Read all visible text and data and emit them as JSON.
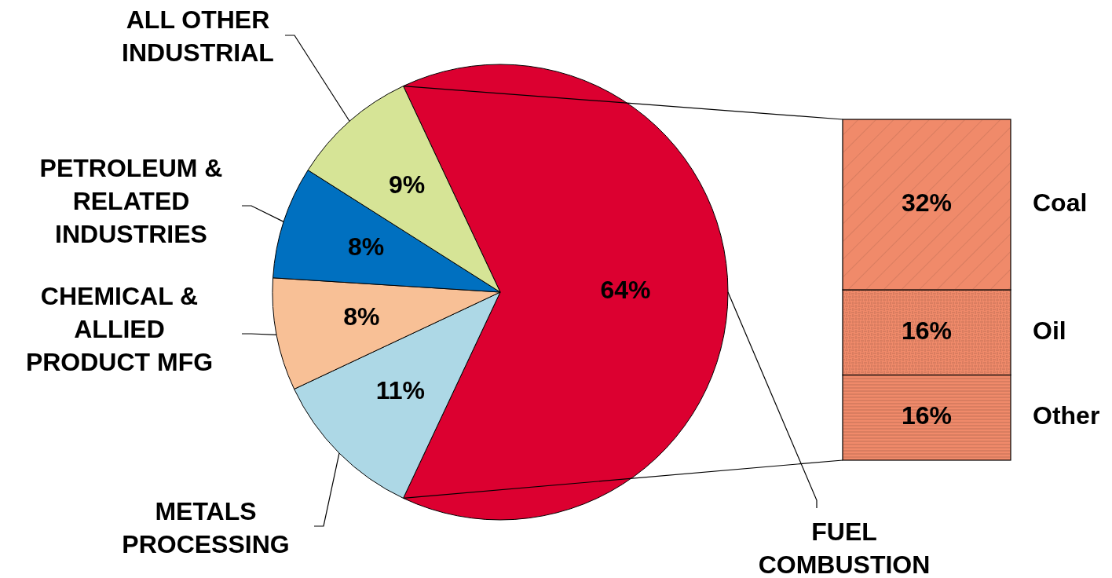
{
  "chart_data": [
    {
      "type": "pie",
      "categories": [
        "FUEL COMBUSTION",
        "METALS PROCESSING",
        "CHEMICAL & ALLIED PRODUCT MFG",
        "PETROLEUM & RELATED INDUSTRIES",
        "ALL OTHER INDUSTRIAL"
      ],
      "values": [
        64,
        11,
        8,
        8,
        9
      ],
      "colors": [
        "#dc0030",
        "#add8e6",
        "#f8c096",
        "#0070c0",
        "#d6e496"
      ],
      "value_labels": [
        "64%",
        "11%",
        "8%",
        "8%",
        "9%"
      ]
    },
    {
      "type": "bar",
      "stacked": true,
      "categories": [
        null
      ],
      "series": [
        {
          "name": "Other",
          "color": "#f08a6a",
          "values": [
            16
          ],
          "value_labels": [
            "16%"
          ]
        },
        {
          "name": "Oil",
          "color": "#f08a6a",
          "values": [
            16
          ],
          "value_labels": [
            "16%"
          ]
        },
        {
          "name": "Coal",
          "color": "#f08a6a",
          "values": [
            32
          ],
          "value_labels": [
            "32%"
          ]
        }
      ]
    }
  ]
}
